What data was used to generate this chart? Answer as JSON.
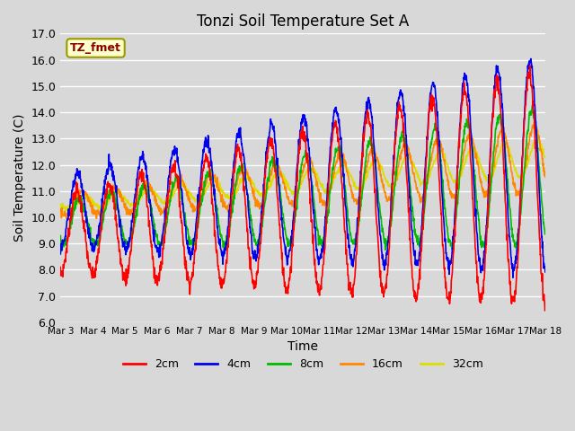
{
  "title": "Tonzi Soil Temperature Set A",
  "xlabel": "Time",
  "ylabel": "Soil Temperature (C)",
  "ylim": [
    6.0,
    17.0
  ],
  "yticks": [
    6.0,
    7.0,
    8.0,
    9.0,
    10.0,
    11.0,
    12.0,
    13.0,
    14.0,
    15.0,
    16.0,
    17.0
  ],
  "background_color": "#d8d8d8",
  "plot_bg_color": "#d8d8d8",
  "grid_color": "#ffffff",
  "legend_label": "TZ_fmet",
  "series_colors": {
    "2cm": "#ff0000",
    "4cm": "#0000ee",
    "8cm": "#00bb00",
    "16cm": "#ff8800",
    "32cm": "#dddd00"
  },
  "xtick_labels": [
    "Mar 3",
    "Mar 4",
    "Mar 5",
    "Mar 6",
    "Mar 7",
    "Mar 8",
    "Mar 9",
    "Mar 10",
    "Mar 11",
    "Mar 12",
    "Mar 13",
    "Mar 14",
    "Mar 15",
    "Mar 16",
    "Mar 17",
    "Mar 18"
  ],
  "n_points_per_day": 96,
  "days": 15,
  "line_width": 1.2,
  "figsize": [
    6.4,
    4.8
  ],
  "dpi": 100
}
